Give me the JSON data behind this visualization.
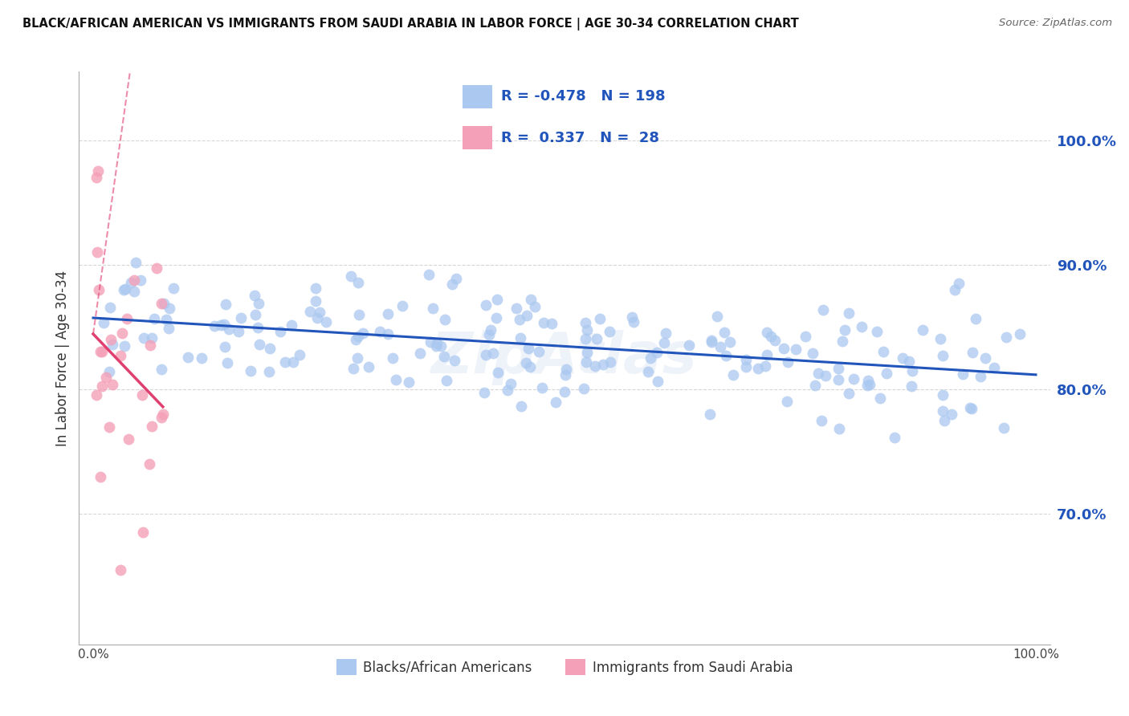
{
  "title": "BLACK/AFRICAN AMERICAN VS IMMIGRANTS FROM SAUDI ARABIA IN LABOR FORCE | AGE 30-34 CORRELATION CHART",
  "source": "Source: ZipAtlas.com",
  "ylabel": "In Labor Force | Age 30-34",
  "blue_R": -0.478,
  "blue_N": 198,
  "pink_R": 0.337,
  "pink_N": 28,
  "blue_color": "#aac8f0",
  "pink_color": "#f4a0b8",
  "blue_line_color": "#2255bb",
  "pink_line_color": "#e04070",
  "title_color": "#111111",
  "source_color": "#666666",
  "label_color": "#2255bb",
  "ytick_labels": [
    "70.0%",
    "80.0%",
    "90.0%",
    "100.0%"
  ],
  "ytick_values": [
    0.7,
    0.8,
    0.9,
    1.0
  ],
  "ylim": [
    0.595,
    1.055
  ],
  "xlim": [
    -0.015,
    1.015
  ],
  "legend_label1": "Blacks/African Americans",
  "legend_label2": "Immigrants from Saudi Arabia",
  "background_color": "#ffffff",
  "grid_color": "#cccccc",
  "watermark": "ZipAtlas"
}
